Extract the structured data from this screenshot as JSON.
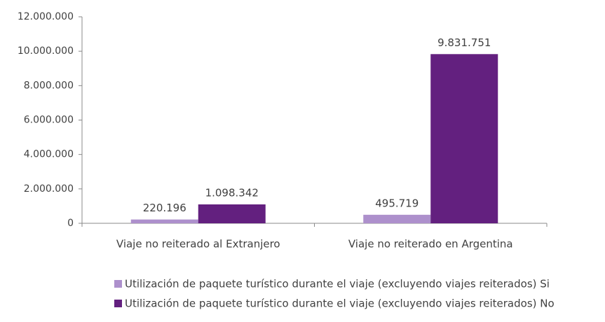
{
  "chart_data": {
    "type": "bar",
    "categories": [
      "Viaje no reiterado al Extranjero",
      "Viaje no reiterado en Argentina"
    ],
    "series": [
      {
        "name": "Utilización de paquete turístico durante el viaje (excluyendo viajes reiterados) Si",
        "color": "#ad90cc",
        "values": [
          220196,
          495719
        ],
        "value_labels": [
          "220.196",
          "495.719"
        ]
      },
      {
        "name": "Utilización de paquete turístico durante el viaje (excluyendo viajes reiterados) No",
        "color": "#63207f",
        "values": [
          1098342,
          9831751
        ],
        "value_labels": [
          "1.098.342",
          "9.831.751"
        ]
      }
    ],
    "ylim": [
      0,
      12000000
    ],
    "yticks": [
      0,
      {
        "value": 2000000,
        "label": "2.000.000"
      },
      {
        "value": 4000000,
        "label": "4.000.000"
      },
      {
        "value": 6000000,
        "label": "6.000.000"
      },
      {
        "value": 8000000,
        "label": "8.000.000"
      },
      {
        "value": 10000000,
        "label": "10.000.000"
      },
      {
        "value": 12000000,
        "label": "12.000.000"
      }
    ],
    "grid": false,
    "legend": "bottom"
  }
}
